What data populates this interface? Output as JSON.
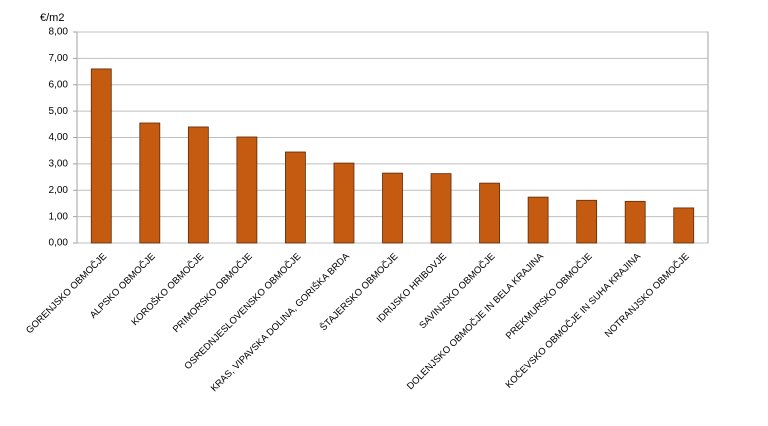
{
  "chart_data": {
    "type": "bar",
    "y_unit_label": "€/m2",
    "categories": [
      "GORENJSKO OBMOČJE",
      "ALPSKO OBMOČJE",
      "KOROŠKO OBMOČJE",
      "PRIMORSKO OBMOČJE",
      "OSREDNJESLOVENSKO OBMOČJE",
      "KRAS, VIPAVSKA DOLINA, GORIŠKA BRDA",
      "ŠTAJERSKO OBMOČJE",
      "IDRIJSKO HRIBOVJE",
      "SAVINJSKO OBMOČJE",
      "DOLENJSKO OBMOČJE IN BELA KRAJINA",
      "PREKMURSKO OBMOČJE",
      "KOČEVSKO OBMOČJE IN SUHA KRAJINA",
      "NOTRANJSKO OBMOČJE"
    ],
    "values": [
      6.6,
      4.55,
      4.4,
      4.02,
      3.45,
      3.03,
      2.65,
      2.63,
      2.27,
      1.74,
      1.62,
      1.58,
      1.33
    ],
    "color": "#c55a11",
    "ylim": [
      0,
      8
    ],
    "yticks": [
      {
        "value": 0,
        "label": "0,00"
      },
      {
        "value": 1,
        "label": "1,00"
      },
      {
        "value": 2,
        "label": "2,00"
      },
      {
        "value": 3,
        "label": "3,00"
      },
      {
        "value": 4,
        "label": "4,00"
      },
      {
        "value": 5,
        "label": "5,00"
      },
      {
        "value": 6,
        "label": "6,00"
      },
      {
        "value": 7,
        "label": "7,00"
      },
      {
        "value": 8,
        "label": "8,00"
      }
    ],
    "grid": true
  }
}
